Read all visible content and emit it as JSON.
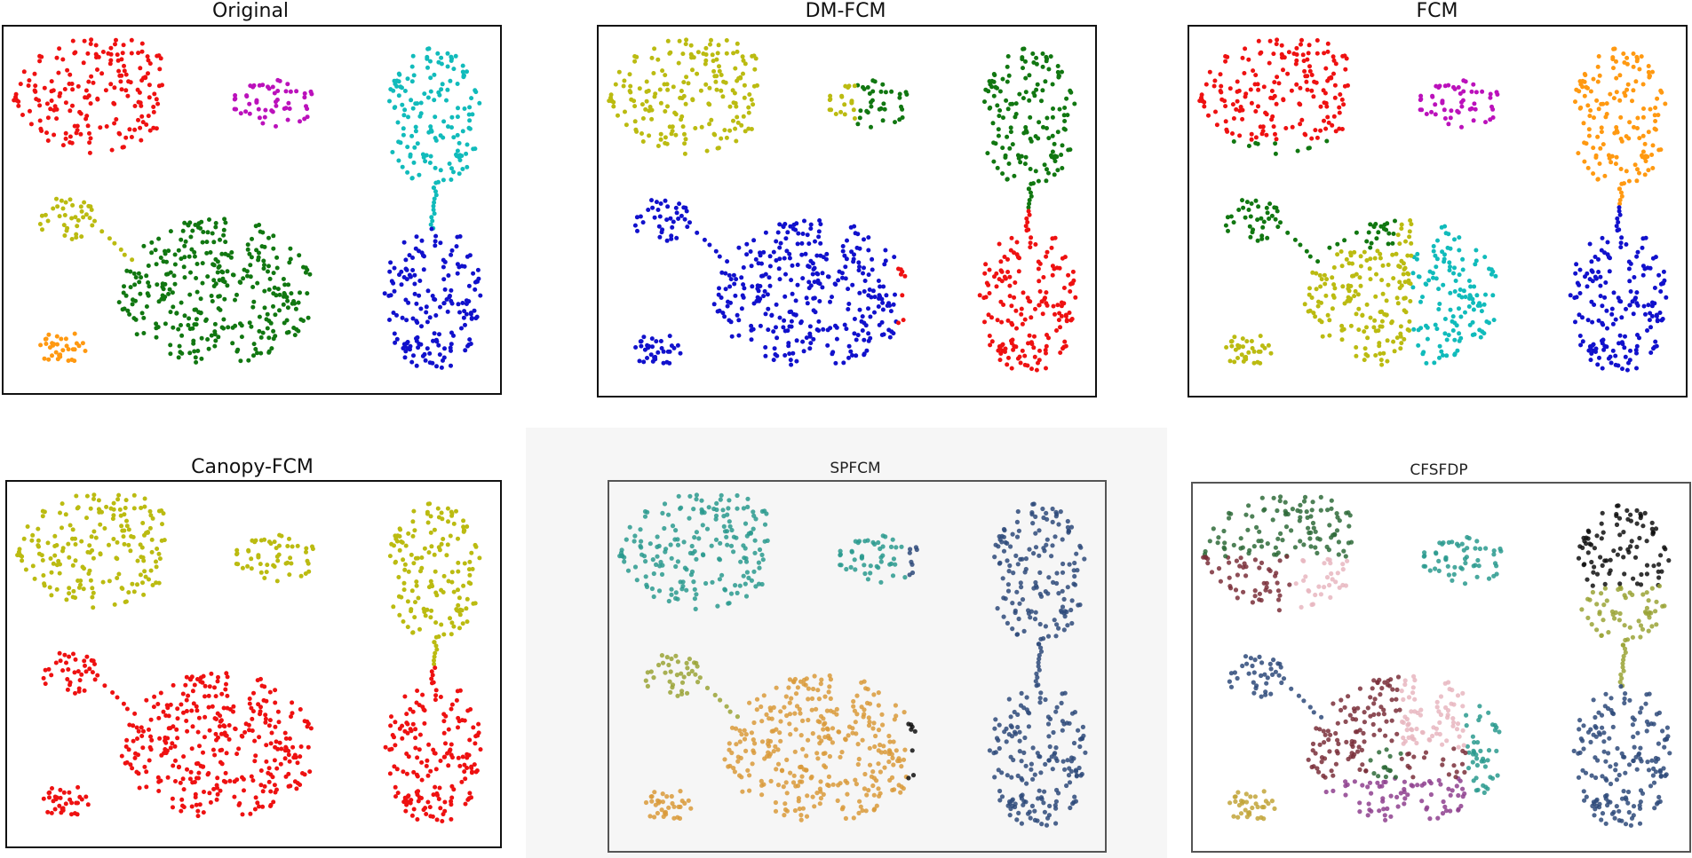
{
  "figure": {
    "colors": {
      "red": "#ee1111",
      "magenta": "#bb11bb",
      "cyan": "#11bbbb",
      "olive": "#bbbb11",
      "green": "#117711",
      "orange": "#ff9911",
      "blue": "#1111cc",
      "black": "#111111",
      "teal": "#2a9a8e",
      "navy": "#2e4a7a",
      "tan": "#d99a3a",
      "olivegreen": "#9aa336",
      "darkgreen": "#2f6b3a",
      "maroon": "#7a2f3a",
      "pink": "#e7b6c0",
      "purple": "#8e3f8e",
      "dullgold": "#c2a43a",
      "salmon": "#e08a94"
    }
  },
  "chart_data": [
    {
      "type": "scatter",
      "title": "Original",
      "clusters": [
        {
          "region": "upper-left crescent",
          "color": "red"
        },
        {
          "region": "upper-middle small blob",
          "color": "magenta"
        },
        {
          "region": "upper-right ellipse",
          "color": "cyan"
        },
        {
          "region": "middle-left small cluster",
          "color": "olive"
        },
        {
          "region": "lower-middle large ellipse",
          "color": "green"
        },
        {
          "region": "lower-left small blob",
          "color": "orange"
        },
        {
          "region": "lower-right ellipse",
          "color": "blue"
        }
      ]
    },
    {
      "type": "scatter",
      "title": "DM-FCM",
      "clusters": [
        {
          "region": "upper-left crescent",
          "color": "olive"
        },
        {
          "region": "upper-middle small blob",
          "color": "green"
        },
        {
          "region": "upper-right ellipse",
          "color": "green"
        },
        {
          "region": "middle-left small cluster",
          "color": "blue"
        },
        {
          "region": "lower-middle large ellipse",
          "color": "blue"
        },
        {
          "region": "lower-left small blob",
          "color": "blue"
        },
        {
          "region": "lower-right ellipse",
          "color": "red"
        }
      ]
    },
    {
      "type": "scatter",
      "title": "FCM",
      "clusters": [
        {
          "region": "upper-left crescent",
          "color": "red"
        },
        {
          "region": "upper-middle small blob",
          "color": "magenta"
        },
        {
          "region": "upper-right ellipse",
          "color": "orange"
        },
        {
          "region": "middle-left small cluster",
          "color": "green"
        },
        {
          "region": "lower-middle large ellipse (left half)",
          "color": "olive"
        },
        {
          "region": "lower-middle large ellipse (right half)",
          "color": "cyan"
        },
        {
          "region": "lower-left small blob",
          "color": "olive"
        },
        {
          "region": "lower-right ellipse",
          "color": "blue"
        }
      ]
    },
    {
      "type": "scatter",
      "title": "Canopy-FCM",
      "clusters": [
        {
          "region": "upper-left crescent",
          "color": "olive"
        },
        {
          "region": "upper-middle small blob",
          "color": "olive"
        },
        {
          "region": "upper-right ellipse",
          "color": "olive"
        },
        {
          "region": "middle-left small cluster",
          "color": "red"
        },
        {
          "region": "lower-middle large ellipse",
          "color": "red"
        },
        {
          "region": "lower-left small blob",
          "color": "red"
        },
        {
          "region": "lower-right ellipse",
          "color": "red"
        }
      ]
    },
    {
      "type": "scatter",
      "title": "SPFCM",
      "clusters": [
        {
          "region": "upper-left crescent",
          "color": "teal"
        },
        {
          "region": "upper-middle small blob",
          "color": "teal"
        },
        {
          "region": "upper-right ellipse",
          "color": "navy"
        },
        {
          "region": "middle-left small cluster",
          "color": "olivegreen"
        },
        {
          "region": "lower-middle large ellipse",
          "color": "tan"
        },
        {
          "region": "lower-left small blob",
          "color": "tan"
        },
        {
          "region": "lower-right ellipse",
          "color": "navy"
        }
      ]
    },
    {
      "type": "scatter",
      "title": "CFSFDP",
      "clusters": [
        {
          "region": "upper-left crescent (top)",
          "color": "darkgreen"
        },
        {
          "region": "upper-left crescent (bottom-left)",
          "color": "maroon"
        },
        {
          "region": "upper-left crescent (bottom-right)",
          "color": "pink"
        },
        {
          "region": "upper-middle small blob",
          "color": "teal"
        },
        {
          "region": "upper-right ellipse (top)",
          "color": "black"
        },
        {
          "region": "upper-right ellipse (bottom)",
          "color": "olivegreen"
        },
        {
          "region": "middle-left small cluster",
          "color": "navy"
        },
        {
          "region": "lower-middle large ellipse (left)",
          "color": "maroon"
        },
        {
          "region": "lower-middle large ellipse (upper-right)",
          "color": "pink"
        },
        {
          "region": "lower-middle large ellipse (right)",
          "color": "teal"
        },
        {
          "region": "lower-middle large ellipse (bottom)",
          "color": "purple"
        },
        {
          "region": "lower-left small blob",
          "color": "dullgold"
        },
        {
          "region": "lower-right ellipse",
          "color": "navy"
        }
      ]
    }
  ]
}
